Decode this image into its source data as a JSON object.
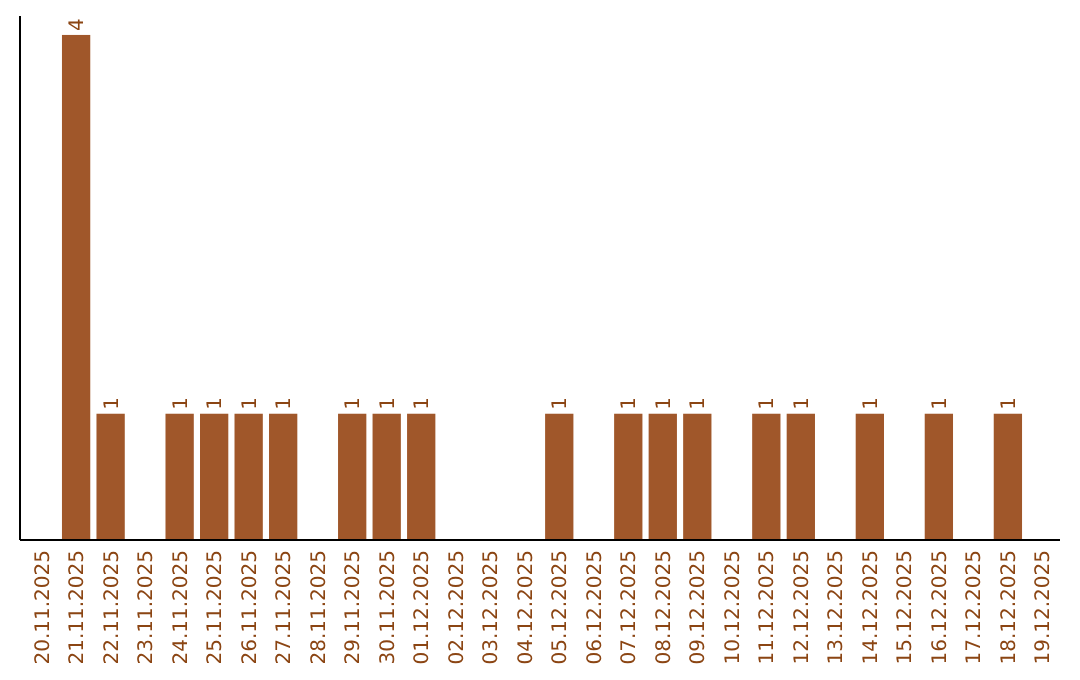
{
  "chart_data": {
    "type": "bar",
    "categories": [
      "20.11.2025",
      "21.11.2025",
      "22.11.2025",
      "23.11.2025",
      "24.11.2025",
      "25.11.2025",
      "26.11.2025",
      "27.11.2025",
      "28.11.2025",
      "29.11.2025",
      "30.11.2025",
      "01.12.2025",
      "02.12.2025",
      "03.12.2025",
      "04.12.2025",
      "05.12.2025",
      "06.12.2025",
      "07.12.2025",
      "08.12.2025",
      "09.12.2025",
      "10.12.2025",
      "11.12.2025",
      "12.12.2025",
      "13.12.2025",
      "14.12.2025",
      "15.12.2025",
      "16.12.2025",
      "17.12.2025",
      "18.12.2025",
      "19.12.2025"
    ],
    "values": [
      null,
      4,
      1,
      null,
      1,
      1,
      1,
      1,
      null,
      1,
      1,
      1,
      null,
      null,
      null,
      1,
      null,
      1,
      1,
      1,
      null,
      1,
      1,
      null,
      1,
      null,
      1,
      null,
      1,
      null
    ],
    "color": "#a0572a",
    "ylim": [
      0,
      4.15
    ],
    "data_labels": true,
    "tick_labels": "x",
    "grid": false
  }
}
